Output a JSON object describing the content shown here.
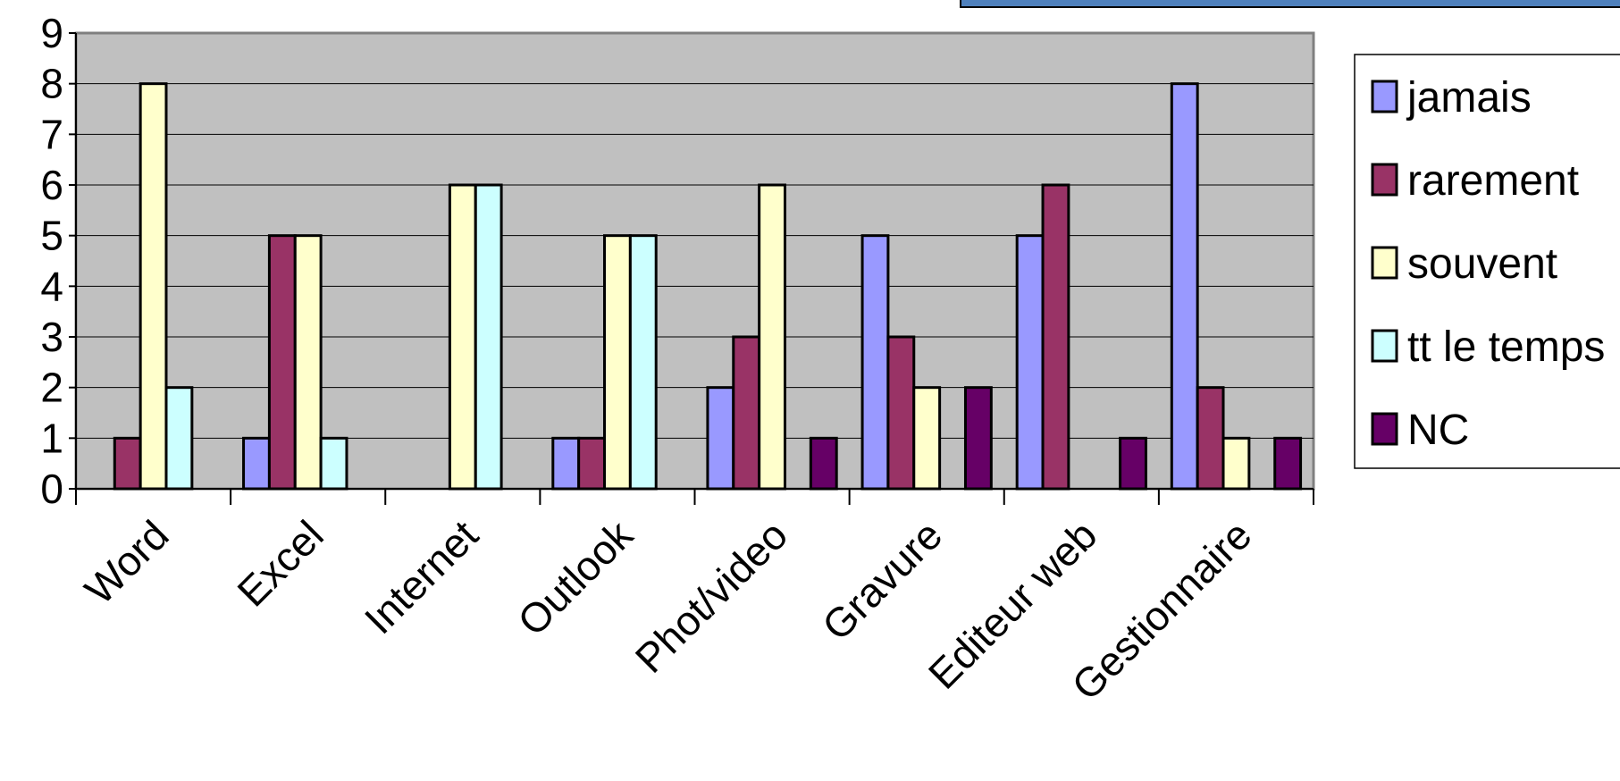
{
  "chart_data": {
    "type": "bar",
    "categories": [
      "Word",
      "Excel",
      "Internet",
      "Outlook",
      "Phot/video",
      "Gravure",
      "Editeur web",
      "Gestionnaire"
    ],
    "series": [
      {
        "name": "jamais",
        "color": "#9999ff",
        "values": [
          0,
          1,
          0,
          1,
          2,
          5,
          5,
          8
        ]
      },
      {
        "name": "rarement",
        "color": "#993366",
        "values": [
          1,
          5,
          0,
          1,
          3,
          3,
          6,
          2
        ]
      },
      {
        "name": "souvent",
        "color": "#ffffcc",
        "values": [
          8,
          5,
          6,
          5,
          6,
          2,
          0,
          1
        ]
      },
      {
        "name": "tt le temps",
        "color": "#ccffff",
        "values": [
          2,
          1,
          6,
          5,
          0,
          0,
          0,
          0
        ]
      },
      {
        "name": "NC",
        "color": "#660066",
        "values": [
          0,
          0,
          0,
          0,
          1,
          2,
          1,
          1
        ]
      }
    ],
    "y_ticks": [
      "0",
      "1",
      "2",
      "3",
      "4",
      "5",
      "6",
      "7",
      "8",
      "9"
    ],
    "ylim": [
      0,
      9
    ],
    "grid": true,
    "plot_background": "#c0c0c0",
    "header_band_color": "#4f81bd",
    "legend_position": "right",
    "title": "",
    "xlabel": "",
    "ylabel": ""
  }
}
